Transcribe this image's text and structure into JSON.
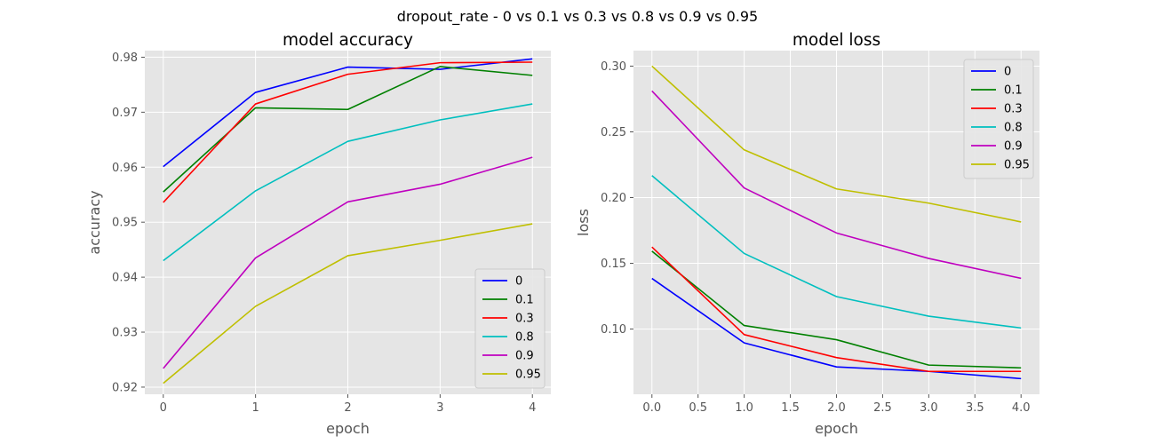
{
  "figure": {
    "suptitle": "dropout_rate - 0 vs 0.1 vs 0.3 vs 0.8 vs 0.9 vs 0.95"
  },
  "chart_data": [
    {
      "type": "line",
      "title": "model accuracy",
      "xlabel": "epoch",
      "ylabel": "accuracy",
      "x": [
        0,
        1,
        2,
        3,
        4
      ],
      "xticks": [
        0,
        1,
        2,
        3,
        4
      ],
      "xtick_labels": [
        "0",
        "1",
        "2",
        "3",
        "4"
      ],
      "yticks": [
        0.92,
        0.93,
        0.94,
        0.95,
        0.96,
        0.97,
        0.98
      ],
      "ytick_labels": [
        "0.92",
        "0.93",
        "0.94",
        "0.95",
        "0.96",
        "0.97",
        "0.98"
      ],
      "xlim": [
        -0.2,
        4.2
      ],
      "ylim": [
        0.9187,
        0.9812
      ],
      "grid": true,
      "legend_position": "lower-right",
      "series": [
        {
          "name": "0",
          "color": "#0000ff",
          "values": [
            0.9601,
            0.9736,
            0.9782,
            0.9778,
            0.9797
          ]
        },
        {
          "name": "0.1",
          "color": "#008000",
          "values": [
            0.9555,
            0.9708,
            0.9705,
            0.9783,
            0.9767
          ]
        },
        {
          "name": "0.3",
          "color": "#ff0000",
          "values": [
            0.9536,
            0.9715,
            0.9769,
            0.979,
            0.9791
          ]
        },
        {
          "name": "0.8",
          "color": "#00bfbf",
          "values": [
            0.943,
            0.9557,
            0.9647,
            0.9686,
            0.9715
          ]
        },
        {
          "name": "0.9",
          "color": "#bf00bf",
          "values": [
            0.9234,
            0.9435,
            0.9537,
            0.9569,
            0.9618
          ]
        },
        {
          "name": "0.95",
          "color": "#bfbf00",
          "values": [
            0.9207,
            0.9347,
            0.9439,
            0.9467,
            0.9497
          ]
        }
      ]
    },
    {
      "type": "line",
      "title": "model loss",
      "xlabel": "epoch",
      "ylabel": "loss",
      "x": [
        0,
        1,
        2,
        3,
        4
      ],
      "xticks": [
        0,
        0.5,
        1,
        1.5,
        2,
        2.5,
        3,
        3.5,
        4
      ],
      "xtick_labels": [
        "0.0",
        "0.5",
        "1.0",
        "1.5",
        "2.0",
        "2.5",
        "3.0",
        "3.5",
        "4.0"
      ],
      "yticks": [
        0.1,
        0.15,
        0.2,
        0.25,
        0.3
      ],
      "ytick_labels": [
        "0.10",
        "0.15",
        "0.20",
        "0.25",
        "0.30"
      ],
      "xlim": [
        -0.2,
        4.2
      ],
      "ylim": [
        0.0504,
        0.3118
      ],
      "grid": true,
      "legend_position": "upper-right",
      "series": [
        {
          "name": "0",
          "color": "#0000ff",
          "values": [
            0.1385,
            0.0895,
            0.0712,
            0.0678,
            0.0623
          ]
        },
        {
          "name": "0.1",
          "color": "#008000",
          "values": [
            0.1592,
            0.1027,
            0.0919,
            0.0726,
            0.0705
          ]
        },
        {
          "name": "0.3",
          "color": "#ff0000",
          "values": [
            0.1624,
            0.0958,
            0.0783,
            0.0678,
            0.0678
          ]
        },
        {
          "name": "0.8",
          "color": "#00bfbf",
          "values": [
            0.2167,
            0.1575,
            0.1247,
            0.1098,
            0.1008
          ]
        },
        {
          "name": "0.9",
          "color": "#bf00bf",
          "values": [
            0.2811,
            0.2073,
            0.1731,
            0.1537,
            0.1386
          ]
        },
        {
          "name": "0.95",
          "color": "#bfbf00",
          "values": [
            0.3,
            0.2363,
            0.2066,
            0.1958,
            0.1815
          ]
        }
      ]
    }
  ]
}
